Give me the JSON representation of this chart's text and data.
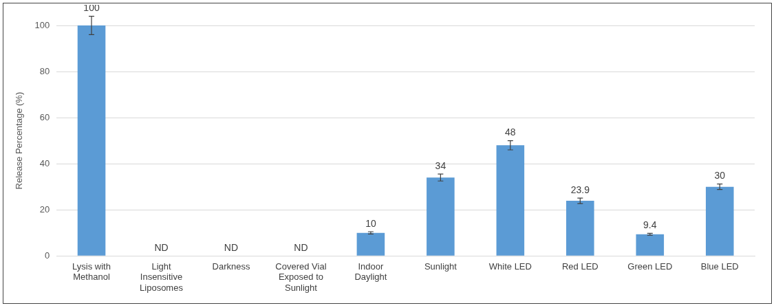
{
  "chart_data": {
    "type": "bar",
    "ylabel": "Release Percentage (%)",
    "categories": [
      "Lysis with Methanol",
      "Light Insensitive Liposomes",
      "Darkness",
      "Covered Vial Exposed to Sunlight",
      "Indoor Daylight",
      "Sunlight",
      "White LED",
      "Red LED",
      "Green LED",
      "Blue LED"
    ],
    "values": [
      100,
      null,
      null,
      null,
      10,
      34,
      48,
      23.9,
      9.4,
      30
    ],
    "errors": [
      4,
      null,
      null,
      null,
      0.5,
      1.5,
      2,
      1.2,
      0.4,
      1.2
    ],
    "value_labels": [
      "100",
      "ND",
      "ND",
      "ND",
      "10",
      "34",
      "48",
      "23.9",
      "9.4",
      "30"
    ],
    "color": "#5b9bd5",
    "ylim": [
      0,
      100
    ],
    "yticks": [
      0,
      20,
      40,
      60,
      80,
      100
    ],
    "grid": "y",
    "legend": false
  }
}
